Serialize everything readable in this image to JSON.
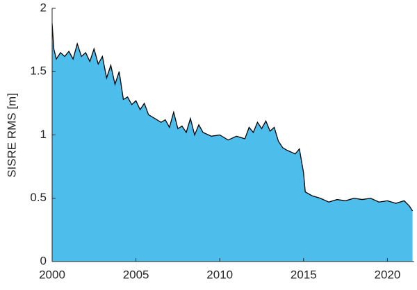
{
  "chart_data": {
    "type": "area",
    "ylabel": "SISRE RMS [m]",
    "x": [
      2000.0,
      2000.1,
      2000.25,
      2000.5,
      2000.75,
      2001.0,
      2001.25,
      2001.5,
      2001.75,
      2002.0,
      2002.25,
      2002.5,
      2002.75,
      2003.0,
      2003.25,
      2003.5,
      2003.75,
      2004.0,
      2004.25,
      2004.5,
      2004.75,
      2005.0,
      2005.25,
      2005.5,
      2005.75,
      2006.0,
      2006.5,
      2006.75,
      2007.0,
      2007.25,
      2007.5,
      2007.75,
      2008.0,
      2008.25,
      2008.5,
      2008.75,
      2009.0,
      2009.5,
      2010.0,
      2010.5,
      2011.0,
      2011.5,
      2011.75,
      2012.0,
      2012.25,
      2012.5,
      2012.75,
      2013.0,
      2013.25,
      2013.5,
      2013.75,
      2014.0,
      2014.5,
      2014.75,
      2015.0,
      2015.1,
      2015.5,
      2016.0,
      2016.5,
      2017.0,
      2017.5,
      2018.0,
      2018.5,
      2019.0,
      2019.5,
      2020.0,
      2020.5,
      2021.0,
      2021.3,
      2021.5
    ],
    "values": [
      1.88,
      1.68,
      1.6,
      1.65,
      1.62,
      1.66,
      1.6,
      1.72,
      1.62,
      1.65,
      1.58,
      1.68,
      1.56,
      1.62,
      1.45,
      1.55,
      1.4,
      1.5,
      1.28,
      1.3,
      1.24,
      1.27,
      1.2,
      1.25,
      1.16,
      1.14,
      1.1,
      1.12,
      1.06,
      1.18,
      1.05,
      1.07,
      1.02,
      1.13,
      1.0,
      1.08,
      1.02,
      0.99,
      1.0,
      0.96,
      0.99,
      0.97,
      1.06,
      1.02,
      1.1,
      1.05,
      1.11,
      1.03,
      1.06,
      0.95,
      0.9,
      0.88,
      0.85,
      0.89,
      0.7,
      0.55,
      0.52,
      0.5,
      0.47,
      0.49,
      0.48,
      0.5,
      0.49,
      0.5,
      0.47,
      0.48,
      0.46,
      0.48,
      0.44,
      0.4
    ],
    "color": "#4dbeeb",
    "line_color": "#000000",
    "xlim": [
      2000,
      2021.6
    ],
    "xticks": [
      2000,
      2005,
      2010,
      2015,
      2020
    ],
    "ylim": [
      0,
      2
    ],
    "yticks": [
      0,
      0.5,
      1,
      1.5,
      2
    ],
    "grid": false
  }
}
